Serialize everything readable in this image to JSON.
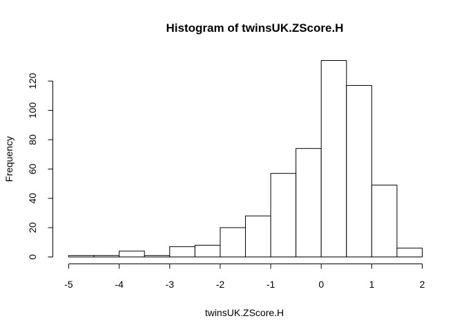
{
  "chart_data": {
    "type": "bar",
    "title": "Histogram of twinsUK.ZScore.H",
    "xlabel": "twinsUK.ZScore.H",
    "ylabel": "Frequency",
    "xlim": [
      -5,
      2
    ],
    "ylim": [
      0,
      134
    ],
    "x_ticks": [
      -5,
      -4,
      -3,
      -2,
      -1,
      0,
      1,
      2
    ],
    "y_ticks": [
      0,
      20,
      40,
      60,
      80,
      100,
      120
    ],
    "bin_edges": [
      -5,
      -4.5,
      -4,
      -3.5,
      -3,
      -2.5,
      -2,
      -1.5,
      -1,
      -0.5,
      0,
      0.5,
      1,
      1.5,
      2
    ],
    "values": [
      1,
      1,
      4,
      1,
      7,
      8,
      20,
      28,
      57,
      74,
      134,
      117,
      49,
      6
    ],
    "grid": false,
    "legend": "none"
  }
}
